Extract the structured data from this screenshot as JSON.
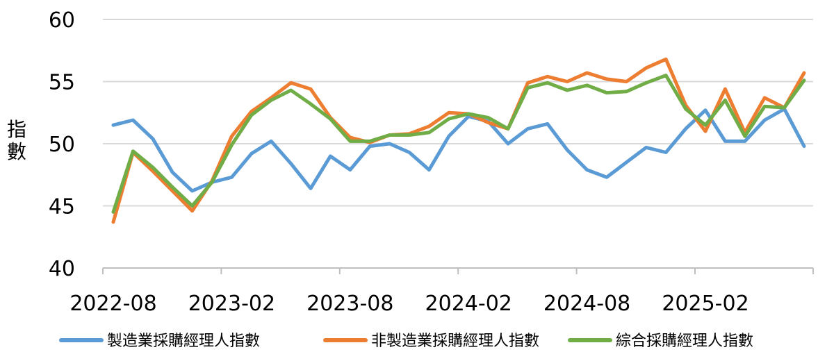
{
  "chart_data": {
    "type": "line",
    "ylabel_chars": [
      "指",
      "數"
    ],
    "ylim": [
      40,
      60
    ],
    "yticks": [
      40,
      45,
      50,
      55,
      60
    ],
    "x_tick_labels": [
      "2022-08",
      "2023-02",
      "2023-08",
      "2024-02",
      "2024-08",
      "2025-02"
    ],
    "x": [
      "2022-08",
      "2022-09",
      "2022-10",
      "2022-11",
      "2022-12",
      "2023-01",
      "2023-02",
      "2023-03",
      "2023-04",
      "2023-05",
      "2023-06",
      "2023-07",
      "2023-08",
      "2023-09",
      "2023-10",
      "2023-11",
      "2023-12",
      "2024-01",
      "2024-02",
      "2024-03",
      "2024-04",
      "2024-05",
      "2024-06",
      "2024-07",
      "2024-08",
      "2024-09",
      "2024-10",
      "2024-11",
      "2024-12",
      "2025-01",
      "2025-02",
      "2025-03",
      "2025-04",
      "2025-05",
      "2025-06",
      "2025-07"
    ],
    "grid": true,
    "legend_position": "bottom",
    "series": [
      {
        "name": "製造業採購經理人指數",
        "color": "#5b9bd5",
        "values": [
          51.5,
          51.9,
          50.4,
          47.7,
          46.2,
          46.9,
          47.3,
          49.2,
          50.2,
          48.4,
          46.4,
          49.0,
          47.9,
          49.8,
          50.0,
          49.3,
          47.9,
          50.6,
          52.2,
          51.8,
          50.0,
          51.2,
          51.6,
          49.5,
          47.9,
          47.3,
          48.5,
          49.7,
          49.3,
          51.2,
          52.7,
          50.2,
          50.2,
          51.9,
          52.8,
          49.8
        ]
      },
      {
        "name": "非製造業採購經理人指數",
        "color": "#ed7d31",
        "values": [
          43.7,
          49.3,
          47.8,
          46.2,
          44.6,
          47.0,
          50.6,
          52.6,
          53.7,
          54.9,
          54.4,
          52.1,
          50.5,
          50.1,
          50.7,
          50.8,
          51.4,
          52.5,
          52.4,
          51.7,
          51.2,
          54.9,
          55.4,
          55.0,
          55.7,
          55.2,
          55.0,
          56.1,
          56.8,
          53.1,
          51.0,
          54.4,
          50.9,
          53.7,
          52.9,
          55.7
        ]
      },
      {
        "name": "綜合採購經理人指數",
        "color": "#70ad47",
        "values": [
          44.5,
          49.4,
          48.1,
          46.5,
          45.0,
          46.9,
          49.9,
          52.3,
          53.5,
          54.3,
          53.2,
          52.0,
          50.2,
          50.2,
          50.7,
          50.7,
          50.9,
          52.0,
          52.4,
          52.1,
          51.2,
          54.5,
          54.9,
          54.3,
          54.7,
          54.1,
          54.2,
          54.9,
          55.5,
          52.8,
          51.5,
          53.5,
          50.6,
          53.0,
          52.9,
          55.1
        ]
      }
    ]
  }
}
